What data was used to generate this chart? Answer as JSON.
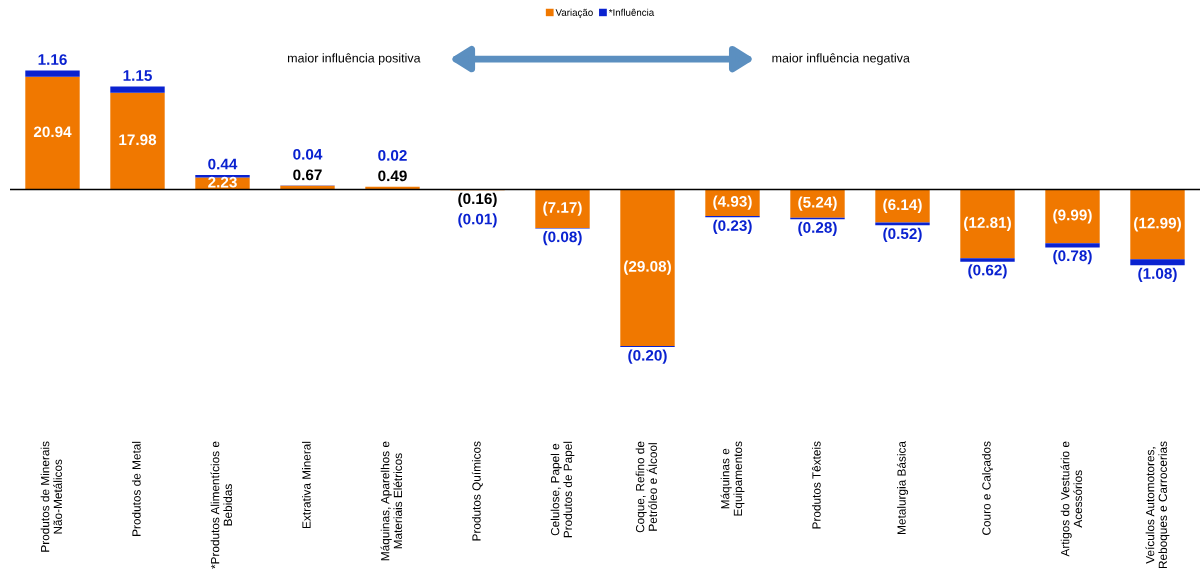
{
  "chart_data": {
    "type": "bar",
    "stacked": true,
    "legend": "top",
    "categories": [
      "Produtos de Minerais\nNão-Metálicos",
      "Produtos de Metal",
      "*Produtos Alimentícios e\nBebidas",
      "Extrativa Mineral",
      "Máquinas, Aparelhos e\nMateriais Elétricos",
      "Produtos Químicos",
      "Celulose, Papel e\nProdutos de Papel",
      "Coque, Refino de\nPetróleo e Álcool",
      "Máquinas e\nEquipamentos",
      "Produtos Têxteis",
      "Metalurgia Básica",
      "Couro e Calçados",
      "Artigos do Vestuário e\nAcessórios",
      "Veículos Automotores,\nReboques e Carrocerias"
    ],
    "series": [
      {
        "name": "Variação",
        "color": "#f07800",
        "values": [
          20.94,
          17.98,
          2.23,
          0.67,
          0.49,
          -0.16,
          -7.17,
          -29.08,
          -4.93,
          -5.24,
          -6.14,
          -12.81,
          -9.99,
          -12.99
        ],
        "value_labels": [
          "20.94",
          "17.98",
          "2.23",
          "0.67",
          "0.49",
          "(0.16)",
          "(7.17)",
          "(29.08)",
          "(4.93)",
          "(5.24)",
          "(6.14)",
          "(12.81)",
          "(9.99)",
          "(12.99)"
        ]
      },
      {
        "name": "*Influência",
        "color": "#0a22d0",
        "values": [
          1.16,
          1.15,
          0.44,
          0.04,
          0.02,
          -0.01,
          -0.08,
          -0.2,
          -0.23,
          -0.28,
          -0.52,
          -0.62,
          -0.78,
          -1.08
        ],
        "value_labels": [
          "1.16",
          "1.15",
          "0.44",
          "0.04",
          "0.02",
          "(0.01)",
          "(0.08)",
          "(0.20)",
          "(0.23)",
          "(0.28)",
          "(0.52)",
          "(0.62)",
          "(0.78)",
          "(1.08)"
        ]
      }
    ],
    "annotations": [
      "maior influência positiva",
      "maior influência negativa"
    ]
  }
}
